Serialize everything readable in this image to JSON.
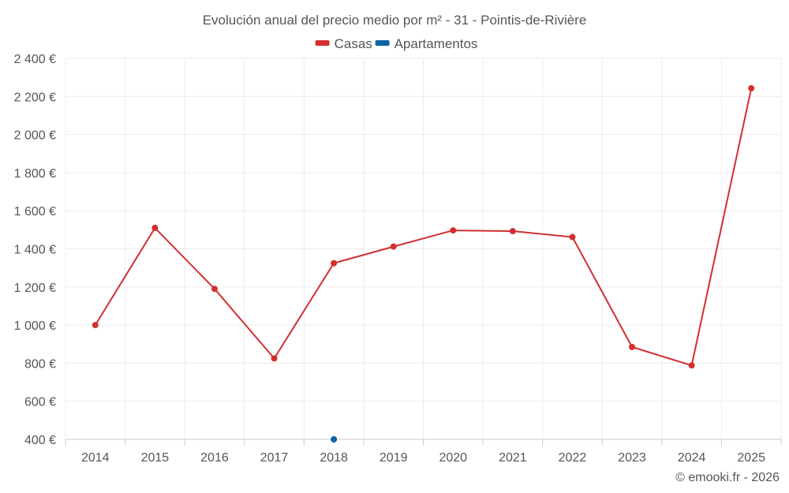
{
  "title": "Evolución anual del precio medio por m² - 31 - Pointis-de-Rivière",
  "credit": "© emooki.fr - 2026",
  "chart_data": {
    "type": "line",
    "title": "Evolución anual del precio medio por m² - 31 - Pointis-de-Rivière",
    "xlabel": "",
    "ylabel": "",
    "categories": [
      "2014",
      "2015",
      "2016",
      "2017",
      "2018",
      "2019",
      "2020",
      "2021",
      "2022",
      "2023",
      "2024",
      "2025"
    ],
    "ylim": [
      400,
      2400
    ],
    "y_ticks": [
      400,
      600,
      800,
      1000,
      1200,
      1400,
      1600,
      1800,
      2000,
      2200,
      2400
    ],
    "y_tick_labels": [
      "400 €",
      "600 €",
      "800 €",
      "1 000 €",
      "1 200 €",
      "1 400 €",
      "1 600 €",
      "1 800 €",
      "2 000 €",
      "2 200 €",
      "2 400 €"
    ],
    "grid": true,
    "legend_position": "top-center",
    "series": [
      {
        "name": "Casas",
        "color": "#d32f2f",
        "values": [
          1000,
          1510,
          1190,
          825,
          1325,
          1412,
          1497,
          1493,
          1462,
          885,
          788,
          2243
        ]
      },
      {
        "name": "Apartamentos",
        "color": "#0b63a3",
        "values": [
          null,
          null,
          null,
          null,
          400,
          null,
          null,
          null,
          null,
          null,
          null,
          null
        ]
      }
    ]
  }
}
